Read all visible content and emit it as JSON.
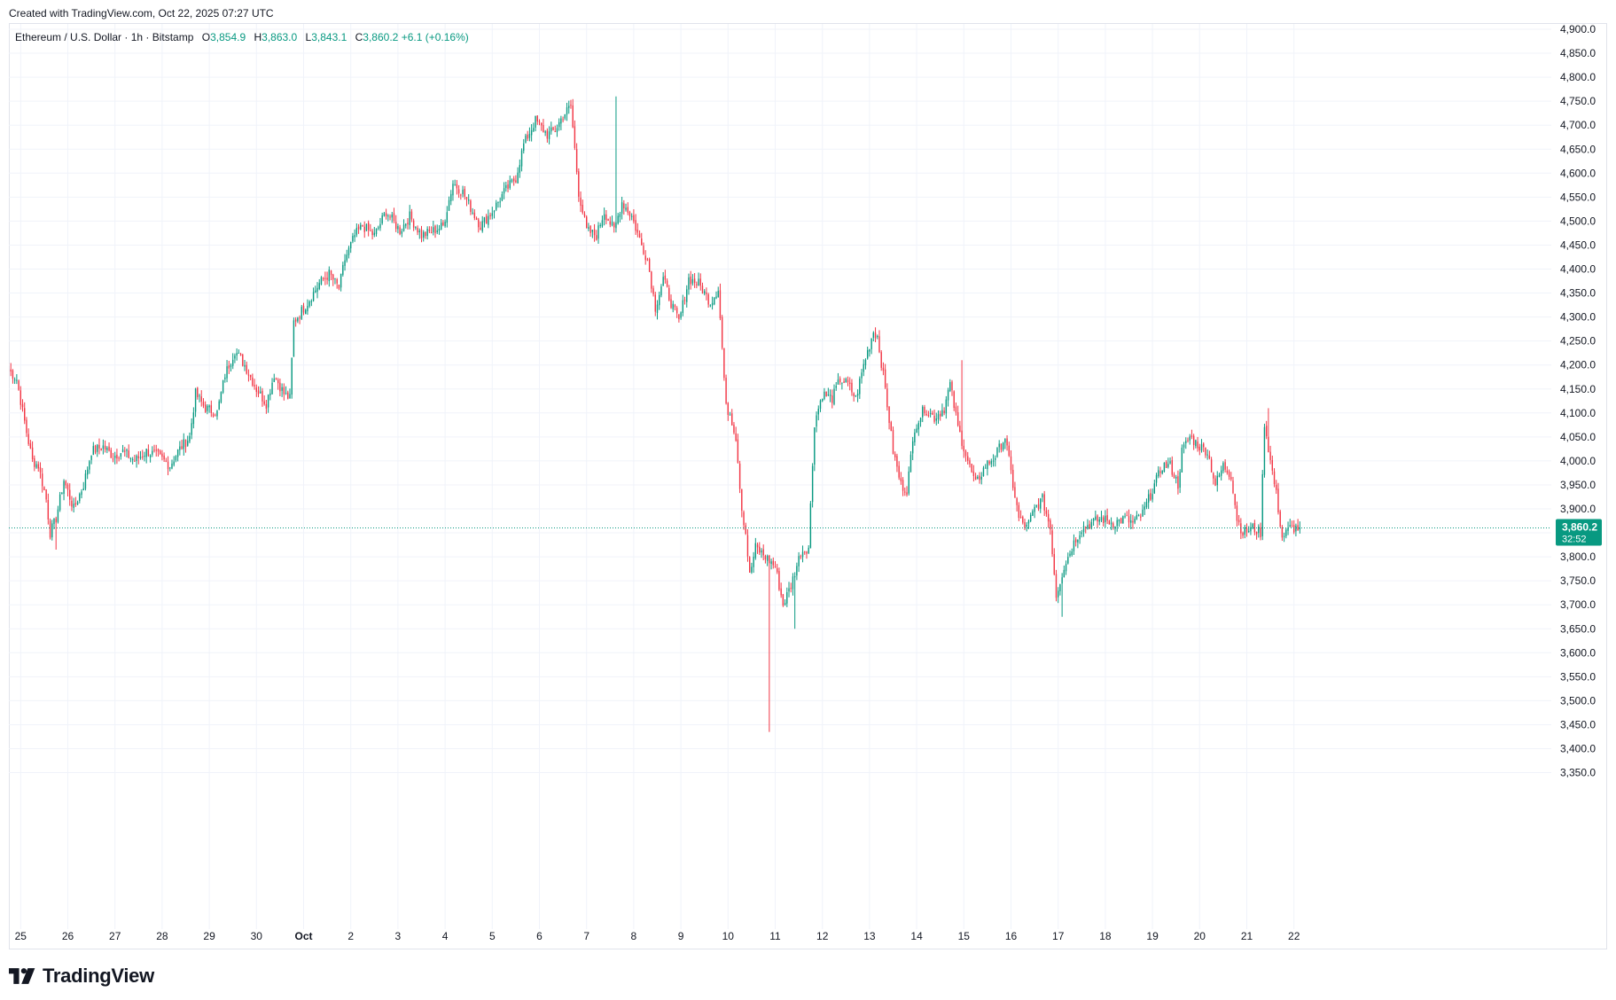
{
  "credit": "Created with TradingView.com, Oct 22, 2025 07:27 UTC",
  "legend": {
    "symbol": "Ethereum / U.S. Dollar · 1h · Bitstamp",
    "o_label": "O",
    "o_value": "3,854.9",
    "h_label": "H",
    "h_value": "3,863.0",
    "l_label": "L",
    "l_value": "3,843.1",
    "c_label": "C",
    "c_value": "3,860.2",
    "change": "+6.1 (+0.16%)"
  },
  "price_tag": {
    "price": "3,860.2",
    "countdown": "32:52"
  },
  "brand": {
    "name": "TradingView",
    "logo_icon": "tradingview-logo-icon"
  },
  "colors": {
    "up": "#089981",
    "down": "#f23645",
    "grid": "#f0f3fa",
    "text": "#131722"
  },
  "chart_data": {
    "type": "candlestick",
    "title": "Ethereum / U.S. Dollar · 1h · Bitstamp",
    "ylim": [
      3300,
      4920
    ],
    "y_ticks": [
      3350,
      3400,
      3450,
      3500,
      3550,
      3600,
      3650,
      3700,
      3750,
      3800,
      3850,
      3900,
      3950,
      4000,
      4050,
      4100,
      4150,
      4200,
      4250,
      4300,
      4350,
      4400,
      4450,
      4500,
      4550,
      4600,
      4650,
      4700,
      4750,
      4800,
      4850,
      4900
    ],
    "y_tick_labels": [
      "3,350.0",
      "3,400.0",
      "3,450.0",
      "3,500.0",
      "3,550.0",
      "3,600.0",
      "3,650.0",
      "3,700.0",
      "3,750.0",
      "3,800.0",
      "3,850.0",
      "3,900.0",
      "3,950.0",
      "4,000.0",
      "4,050.0",
      "4,100.0",
      "4,150.0",
      "4,200.0",
      "4,250.0",
      "4,300.0",
      "4,350.0",
      "4,400.0",
      "4,450.0",
      "4,500.0",
      "4,550.0",
      "4,600.0",
      "4,650.0",
      "4,700.0",
      "4,750.0",
      "4,800.0",
      "4,850.0",
      "4,900.0"
    ],
    "x_ticks": [
      "25",
      "26",
      "27",
      "28",
      "29",
      "30",
      "Oct",
      "2",
      "3",
      "4",
      "5",
      "6",
      "7",
      "8",
      "9",
      "10",
      "11",
      "12",
      "13",
      "14",
      "15",
      "16",
      "17",
      "18",
      "19",
      "20",
      "21",
      "22"
    ],
    "x_start_label": "Sep 24 18:00",
    "interval_hours": 1,
    "last_close": 3860.2,
    "grid": true,
    "price_path": [
      [
        "Sep 24 18:00",
        4190
      ],
      [
        "Sep 24 22:00",
        4170
      ],
      [
        "Sep 25 03:00",
        4060
      ],
      [
        "Sep 25 06:00",
        4000
      ],
      [
        "Sep 25 09:00",
        3990
      ],
      [
        "Sep 25 13:00",
        3920
      ],
      [
        "Sep 25 15:00",
        3850
      ],
      [
        "Sep 25 18:00",
        3880
      ],
      [
        "Sep 25 22:00",
        3960
      ],
      [
        "Sep 26 03:00",
        3900
      ],
      [
        "Sep 26 08:00",
        3950
      ],
      [
        "Sep 26 12:00",
        4020
      ],
      [
        "Sep 26 18:00",
        4030
      ],
      [
        "Sep 26 23:00",
        4010
      ],
      [
        "Sep 27 04:00",
        4020
      ],
      [
        "Sep 27 10:00",
        4000
      ],
      [
        "Sep 27 16:00",
        4020
      ],
      [
        "Sep 27 22:00",
        4010
      ],
      [
        "Sep 28 04:00",
        3990
      ],
      [
        "Sep 28 08:00",
        4020
      ],
      [
        "Sep 28 14:00",
        4050
      ],
      [
        "Sep 28 17:00",
        4140
      ],
      [
        "Sep 28 22:00",
        4110
      ],
      [
        "Sep 29 04:00",
        4100
      ],
      [
        "Sep 29 08:00",
        4180
      ],
      [
        "Sep 29 13:00",
        4230
      ],
      [
        "Sep 29 18:00",
        4200
      ],
      [
        "Sep 30 00:00",
        4150
      ],
      [
        "Sep 30 05:00",
        4120
      ],
      [
        "Sep 30 09:00",
        4180
      ],
      [
        "Sep 30 14:00",
        4140
      ],
      [
        "Sep 30 17:00",
        4130
      ],
      [
        "Sep 30 19:00",
        4290
      ],
      [
        "Oct 1 02:00",
        4330
      ],
      [
        "Oct 1 08:00",
        4370
      ],
      [
        "Oct 1 13:00",
        4390
      ],
      [
        "Oct 1 18:00",
        4360
      ],
      [
        "Oct 1 21:00",
        4420
      ],
      [
        "Oct 2 02:00",
        4470
      ],
      [
        "Oct 2 06:00",
        4490
      ],
      [
        "Oct 2 12:00",
        4470
      ],
      [
        "Oct 2 18:00",
        4520
      ],
      [
        "Oct 3 01:00",
        4480
      ],
      [
        "Oct 3 06:00",
        4510
      ],
      [
        "Oct 3 12:00",
        4470
      ],
      [
        "Oct 3 18:00",
        4480
      ],
      [
        "Oct 3 23:00",
        4490
      ],
      [
        "Oct 4 04:00",
        4580
      ],
      [
        "Oct 4 09:00",
        4560
      ],
      [
        "Oct 4 14:00",
        4520
      ],
      [
        "Oct 4 18:00",
        4490
      ],
      [
        "Oct 5 00:00",
        4520
      ],
      [
        "Oct 5 06:00",
        4560
      ],
      [
        "Oct 5 12:00",
        4590
      ],
      [
        "Oct 5 16:00",
        4660
      ],
      [
        "Oct 5 22:00",
        4710
      ],
      [
        "Oct 6 04:00",
        4680
      ],
      [
        "Oct 6 08:00",
        4690
      ],
      [
        "Oct 6 12:00",
        4720
      ],
      [
        "Oct 6 16:00",
        4740
      ],
      [
        "Oct 6 20:00",
        4560
      ],
      [
        "Oct 7 00:00",
        4480
      ],
      [
        "Oct 7 05:00",
        4470
      ],
      [
        "Oct 7 09:00",
        4520
      ],
      [
        "Oct 7 14:00",
        4480
      ],
      [
        "Oct 7 18:00",
        4540
      ],
      [
        "Oct 7 23:00",
        4510
      ],
      [
        "Oct 8 04:00",
        4450
      ],
      [
        "Oct 8 07:00",
        4420
      ],
      [
        "Oct 8 11:00",
        4320
      ],
      [
        "Oct 8 15:00",
        4380
      ],
      [
        "Oct 8 19:00",
        4330
      ],
      [
        "Oct 8 23:00",
        4290
      ],
      [
        "Oct 9 04:00",
        4380
      ],
      [
        "Oct 9 09:00",
        4370
      ],
      [
        "Oct 9 15:00",
        4330
      ],
      [
        "Oct 9 19:00",
        4360
      ],
      [
        "Oct 9 23:00",
        4110
      ],
      [
        "Oct 10 01:00",
        4100
      ],
      [
        "Oct 10 04:00",
        4050
      ],
      [
        "Oct 10 07:00",
        3900
      ],
      [
        "Oct 10 09:00",
        3850
      ],
      [
        "Oct 10 11:00",
        3760
      ],
      [
        "Oct 10 14:00",
        3820
      ],
      [
        "Oct 10 19:00",
        3800
      ],
      [
        "Oct 11 00:00",
        3780
      ],
      [
        "Oct 11 04:00",
        3700
      ],
      [
        "Oct 11 08:00",
        3740
      ],
      [
        "Oct 11 13:00",
        3810
      ],
      [
        "Oct 11 17:00",
        3820
      ],
      [
        "Oct 11 20:00",
        4080
      ],
      [
        "Oct 12 00:00",
        4140
      ],
      [
        "Oct 12 05:00",
        4130
      ],
      [
        "Oct 12 09:00",
        4170
      ],
      [
        "Oct 12 13:00",
        4160
      ],
      [
        "Oct 12 17:00",
        4130
      ],
      [
        "Oct 12 21:00",
        4200
      ],
      [
        "Oct 13 02:00",
        4270
      ],
      [
        "Oct 13 04:00",
        4260
      ],
      [
        "Oct 13 08:00",
        4150
      ],
      [
        "Oct 13 12:00",
        4020
      ],
      [
        "Oct 13 16:00",
        3950
      ],
      [
        "Oct 13 19:00",
        3940
      ],
      [
        "Oct 13 23:00",
        4070
      ],
      [
        "Oct 14 04:00",
        4110
      ],
      [
        "Oct 14 09:00",
        4090
      ],
      [
        "Oct 14 14:00",
        4110
      ],
      [
        "Oct 14 17:00",
        4160
      ],
      [
        "Oct 14 21:00",
        4070
      ],
      [
        "Oct 15 02:00",
        4000
      ],
      [
        "Oct 15 06:00",
        3950
      ],
      [
        "Oct 15 11:00",
        3990
      ],
      [
        "Oct 15 16:00",
        4010
      ],
      [
        "Oct 15 21:00",
        4050
      ],
      [
        "Oct 16 01:00",
        3950
      ],
      [
        "Oct 16 04:00",
        3880
      ],
      [
        "Oct 16 08:00",
        3860
      ],
      [
        "Oct 16 12:00",
        3900
      ],
      [
        "Oct 16 16:00",
        3920
      ],
      [
        "Oct 16 20:00",
        3860
      ],
      [
        "Oct 16 23:00",
        3720
      ],
      [
        "Oct 17 03:00",
        3780
      ],
      [
        "Oct 17 08:00",
        3830
      ],
      [
        "Oct 17 12:00",
        3860
      ],
      [
        "Oct 17 17:00",
        3870
      ],
      [
        "Oct 17 22:00",
        3880
      ],
      [
        "Oct 18 04:00",
        3870
      ],
      [
        "Oct 18 10:00",
        3880
      ],
      [
        "Oct 18 14:00",
        3870
      ],
      [
        "Oct 18 19:00",
        3890
      ],
      [
        "Oct 19 00:00",
        3940
      ],
      [
        "Oct 19 05:00",
        3990
      ],
      [
        "Oct 19 09:00",
        3990
      ],
      [
        "Oct 19 13:00",
        3950
      ],
      [
        "Oct 19 15:00",
        4020
      ],
      [
        "Oct 19 19:00",
        4050
      ],
      [
        "Oct 20 00:00",
        4030
      ],
      [
        "Oct 20 04:00",
        4020
      ],
      [
        "Oct 20 08:00",
        3950
      ],
      [
        "Oct 20 12:00",
        3990
      ],
      [
        "Oct 20 16:00",
        3970
      ],
      [
        "Oct 20 19:00",
        3880
      ],
      [
        "Oct 20 22:00",
        3850
      ],
      [
        "Oct 21 03:00",
        3860
      ],
      [
        "Oct 21 07:00",
        3850
      ],
      [
        "Oct 21 09:00",
        4080
      ],
      [
        "Oct 21 12:00",
        4000
      ],
      [
        "Oct 21 15:00",
        3930
      ],
      [
        "Oct 21 18:00",
        3840
      ],
      [
        "Oct 21 22:00",
        3860
      ],
      [
        "Oct 22 03:00",
        3860
      ]
    ],
    "spikes": [
      {
        "time": "Oct 10 21:00",
        "low": 3435
      },
      {
        "time": "Oct 11 10:00",
        "low": 3650
      },
      {
        "time": "Oct 7 15:00",
        "high": 4760
      },
      {
        "time": "Oct 21 11:00",
        "high": 4110
      },
      {
        "time": "Oct 17 02:00",
        "low": 3675
      },
      {
        "time": "Sep 25 18:00",
        "low": 3815
      },
      {
        "time": "Oct 14 23:00",
        "high": 4210
      }
    ]
  }
}
